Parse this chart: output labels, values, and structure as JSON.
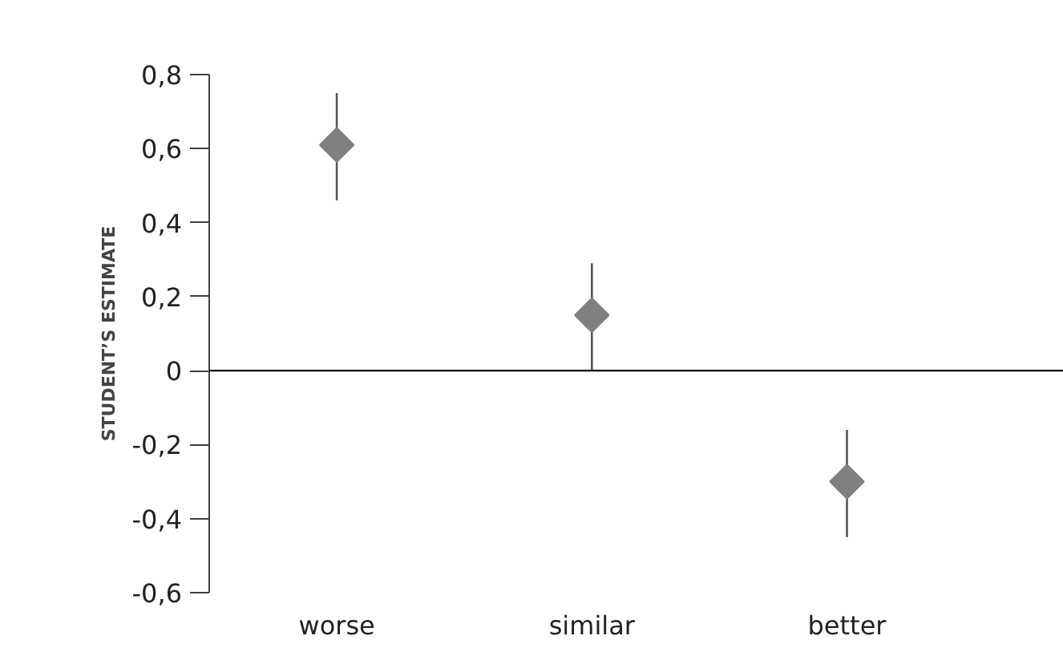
{
  "chart_data": {
    "type": "scatter",
    "ylabel": "STUDENT’S ESTIMATE",
    "categories": [
      "worse",
      "similar",
      "better"
    ],
    "series": [
      {
        "color": "#808080",
        "values": [
          0.61,
          0.15,
          -0.3
        ],
        "errors": [
          [
            0.46,
            0.75
          ],
          [
            0,
            0.29
          ],
          [
            -0.45,
            -0.16
          ]
        ]
      }
    ],
    "marker": "diamond",
    "ylim": [
      -0.6,
      0.8
    ],
    "yticks": [
      {
        "value": -0.6,
        "label": "-0,6"
      },
      {
        "value": -0.4,
        "label": "-0,4"
      },
      {
        "value": -0.2,
        "label": "-0,2"
      },
      0,
      {
        "value": 0.2,
        "label": "0,2"
      },
      {
        "value": 0.4,
        "label": "0,4"
      },
      {
        "value": 0.6,
        "label": "0,6"
      },
      {
        "value": 0.8,
        "label": "0,8"
      }
    ],
    "ref_lines": [
      {
        "axis": "y",
        "value": 0,
        "color": "#000000"
      }
    ],
    "grid": false
  }
}
